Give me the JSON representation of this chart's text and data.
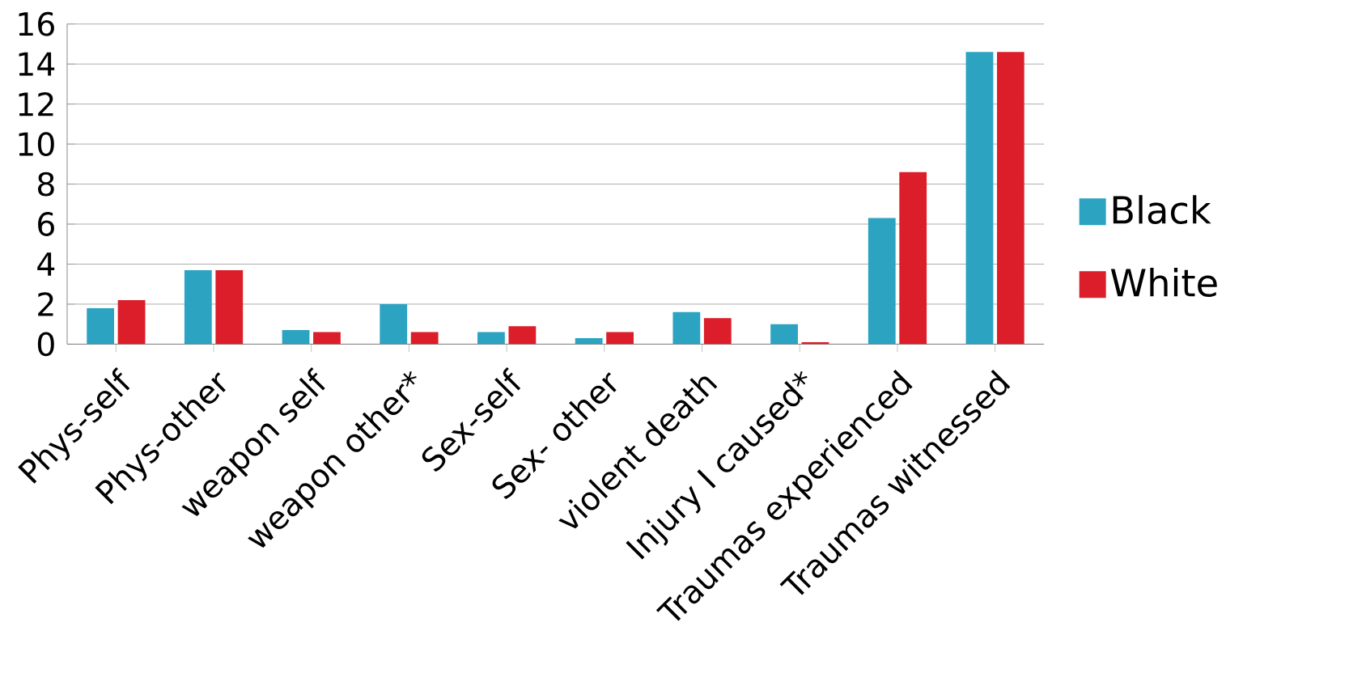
{
  "chart_data": {
    "type": "bar",
    "categories": [
      "Phys-self",
      "Phys-other",
      "weapon self",
      "weapon other*",
      "Sex-self",
      "Sex- other",
      "violent death",
      "Injury I caused*",
      "Traumas experienced",
      "Traumas witnessed"
    ],
    "series": [
      {
        "name": "Black",
        "color": "#2ba3c1",
        "values": [
          1.8,
          3.7,
          0.7,
          2.0,
          0.6,
          0.3,
          1.6,
          1.0,
          6.3,
          14.6
        ]
      },
      {
        "name": "White",
        "color": "#dc1e2a",
        "values": [
          2.2,
          3.7,
          0.6,
          0.6,
          0.9,
          0.6,
          1.3,
          0.1,
          8.6,
          14.6
        ]
      }
    ],
    "ylim": [
      0,
      16
    ],
    "yticks": [
      0,
      2,
      4,
      6,
      8,
      10,
      12,
      14,
      16
    ],
    "grid": "y",
    "legend": "right"
  }
}
